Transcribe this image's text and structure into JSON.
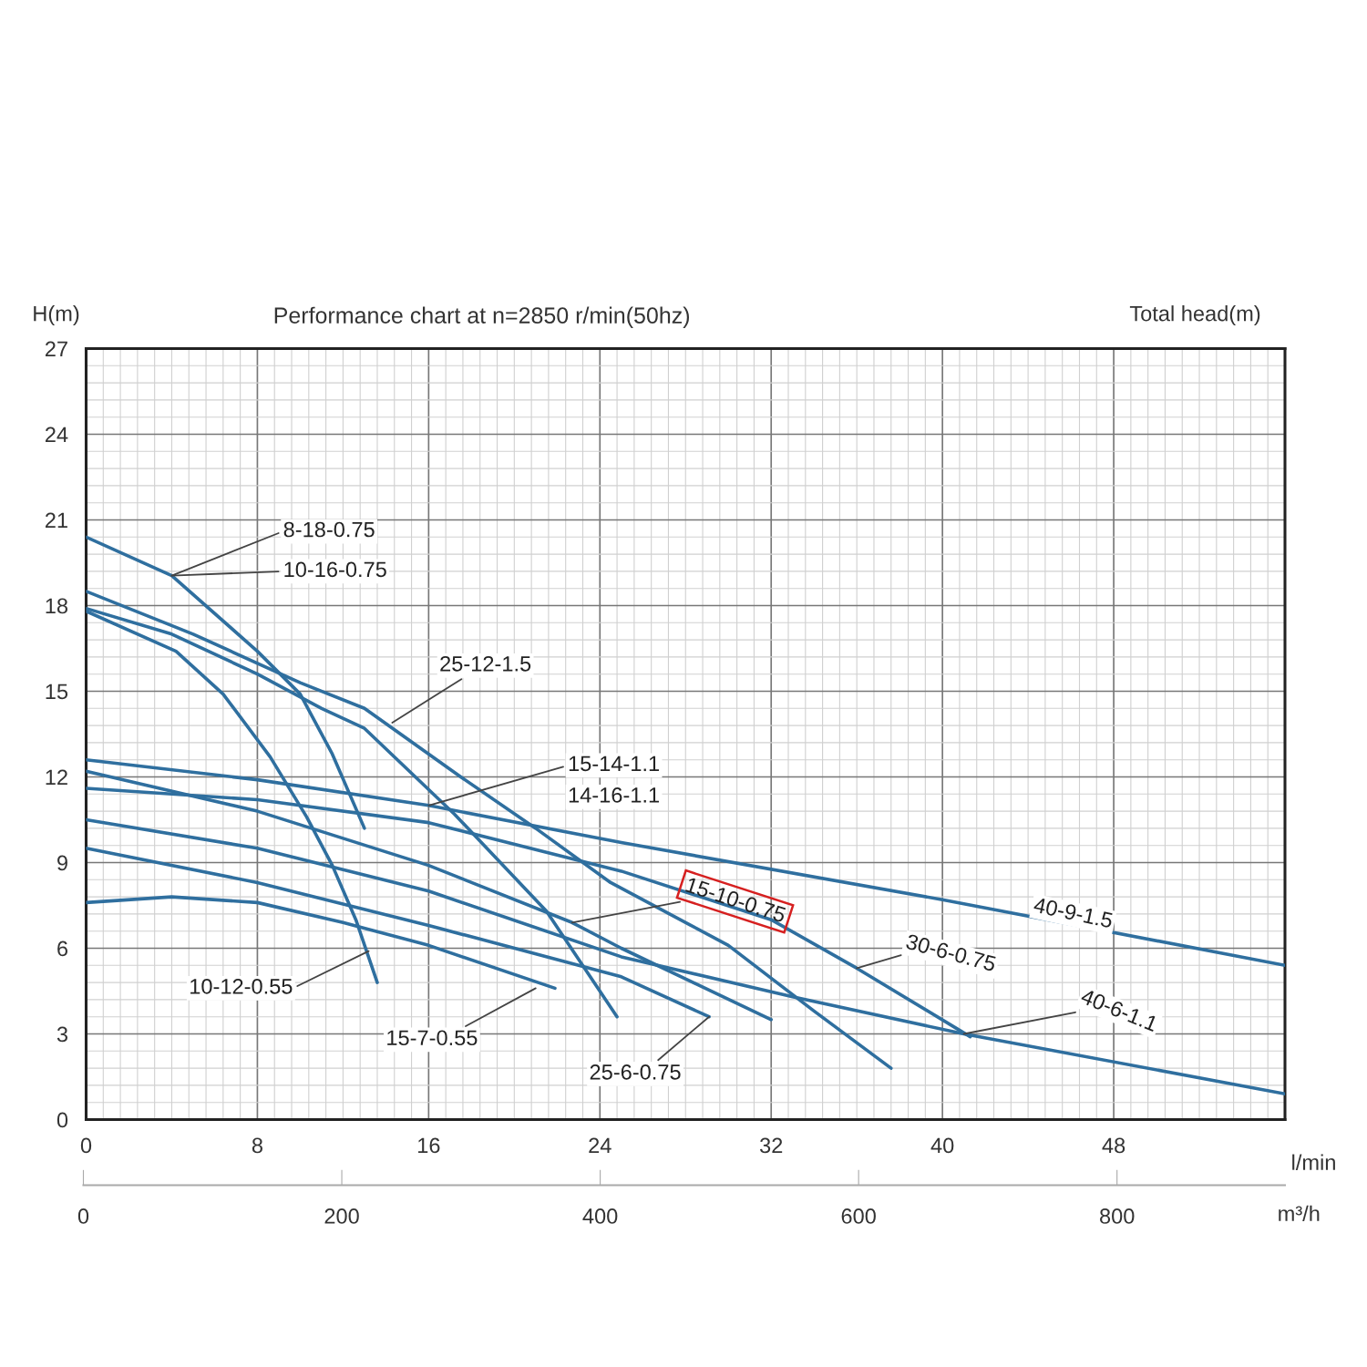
{
  "chart_data": {
    "type": "line",
    "title": "Performance chart at n=2850 r/min(50hz)",
    "ylabel": "H(m)",
    "xlabel": "l/min",
    "x2label": "m³/h",
    "xlim": [
      0,
      56
    ],
    "xticks": [
      0,
      8,
      16,
      24,
      32,
      40,
      48
    ],
    "ylim": [
      0,
      27
    ],
    "yticks": [
      0,
      3,
      6,
      9,
      12,
      15,
      18,
      21,
      24,
      27
    ],
    "x2lim": [
      0,
      930
    ],
    "x2ticks": [
      0,
      200,
      400,
      600,
      800
    ],
    "grid": true,
    "marker": "none",
    "line_style": "solid",
    "series": [
      {
        "color": "#2f6f9f",
        "x": [
          0,
          4,
          8,
          10,
          11.5,
          13
        ],
        "values": [
          20.4,
          19.05,
          16.4,
          14.9,
          12.8,
          10.2
        ]
      },
      {
        "color": "#2f6f9f",
        "x": [
          0,
          5,
          10,
          13,
          17.5,
          21,
          24.5,
          30,
          34,
          37.6
        ],
        "values": [
          18.5,
          17.0,
          15.3,
          14.4,
          12.0,
          10.2,
          8.3,
          6.1,
          3.8,
          1.8
        ]
      },
      {
        "color": "#2f6f9f",
        "x": [
          0,
          4,
          8,
          11,
          13,
          17.2,
          21.5,
          24.8
        ],
        "values": [
          17.9,
          17.0,
          15.6,
          14.4,
          13.7,
          10.7,
          7.3,
          3.6
        ]
      },
      {
        "color": "#2f6f9f",
        "x": [
          0,
          4.2,
          6.4,
          8.6,
          10.3,
          11.5,
          12.6,
          13.6
        ],
        "values": [
          17.8,
          16.4,
          14.9,
          12.7,
          10.6,
          8.9,
          7.0,
          4.8
        ]
      },
      {
        "color": "#2f6f9f",
        "x": [
          0,
          8,
          16,
          25,
          40,
          56
        ],
        "values": [
          12.6,
          11.9,
          11.0,
          9.7,
          7.7,
          5.4
        ]
      },
      {
        "color": "#2f6f9f",
        "x": [
          0,
          8,
          16,
          22.7,
          25,
          32
        ],
        "values": [
          12.2,
          10.8,
          8.9,
          6.9,
          6.0,
          3.5
        ]
      },
      {
        "color": "#2f6f9f",
        "x": [
          0,
          8,
          16,
          25,
          32,
          36,
          41.3
        ],
        "values": [
          11.6,
          11.2,
          10.4,
          8.7,
          7.0,
          5.3,
          2.9
        ]
      },
      {
        "color": "#2f6f9f",
        "x": [
          0,
          8,
          16,
          25,
          33,
          41,
          56
        ],
        "values": [
          10.5,
          9.5,
          8.0,
          5.7,
          4.3,
          3.0,
          0.9
        ]
      },
      {
        "color": "#2f6f9f",
        "x": [
          0,
          8,
          16,
          25,
          29.1
        ],
        "values": [
          9.5,
          8.3,
          6.8,
          5.0,
          3.6
        ]
      },
      {
        "color": "#2f6f9f",
        "x": [
          0,
          4,
          8,
          12,
          16,
          21.9
        ],
        "values": [
          7.6,
          7.8,
          7.6,
          6.9,
          6.1,
          4.6
        ]
      }
    ],
    "annotations": [
      {
        "text": "8-18-0.75",
        "x": 4.0,
        "y": 19.05
      },
      {
        "text": "10-16-0.75",
        "x": 4.0,
        "y": 19.05
      },
      {
        "text": "25-12-1.5",
        "x": 14.3,
        "y": 13.9
      },
      {
        "text": "15-14-1.1",
        "x": 16,
        "y": 11.0
      },
      {
        "text": "14-16-1.1",
        "x": 16,
        "y": 11.0
      },
      {
        "text": "15-10-0.75",
        "x": 22.7,
        "y": 6.9
      },
      {
        "text": "30-6-0.75",
        "x": 36,
        "y": 5.3
      },
      {
        "text": "40-9-1.5",
        "x": 46,
        "y": 6.84
      },
      {
        "text": "40-6-1.1",
        "x": 41,
        "y": 3.0
      },
      {
        "text": "10-12-0.55",
        "x": 13.2,
        "y": 5.9
      },
      {
        "text": "15-7-0.55",
        "x": 21,
        "y": 4.6
      },
      {
        "text": "25-6-0.75",
        "x": 29.1,
        "y": 3.6
      },
      "Total head(m)"
    ]
  }
}
